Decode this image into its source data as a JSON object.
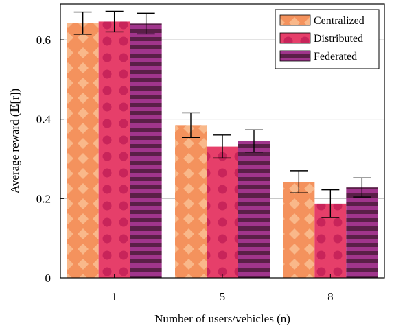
{
  "chart_data": {
    "type": "bar",
    "title": "",
    "xlabel": "Number of users/vehicles (n)",
    "ylabel": "Average reward (𝔼[r])",
    "categories": [
      "1",
      "5",
      "8"
    ],
    "series": [
      {
        "name": "Centralized",
        "values": [
          0.642,
          0.385,
          0.242
        ],
        "errors": [
          0.028,
          0.031,
          0.028
        ],
        "color": "#f4925d",
        "pattern_color": "#f9b88a",
        "pattern": "diamonds"
      },
      {
        "name": "Distributed",
        "values": [
          0.646,
          0.331,
          0.187
        ],
        "errors": [
          0.026,
          0.029,
          0.035
        ],
        "color": "#e63f6a",
        "pattern_color": "#c8245a",
        "pattern": "dots"
      },
      {
        "name": "Federated",
        "values": [
          0.641,
          0.345,
          0.228
        ],
        "errors": [
          0.026,
          0.028,
          0.024
        ],
        "color": "#a0358c",
        "pattern_color": "#5a1f48",
        "pattern": "stripes"
      }
    ],
    "ylim": [
      0,
      0.69
    ],
    "yticks": [
      "0",
      "0.2",
      "0.4",
      "0.6"
    ],
    "ytick_values": [
      0,
      0.2,
      0.4,
      0.6
    ],
    "grid": true,
    "legend_position": "top-right"
  }
}
